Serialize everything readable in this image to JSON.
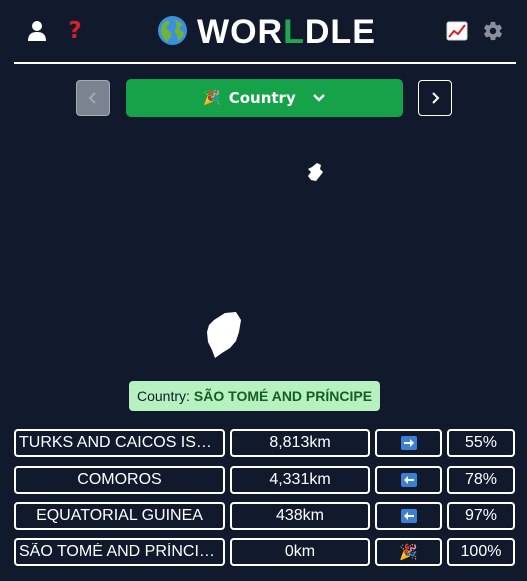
{
  "header": {
    "title_prefix": "WOR",
    "title_highlight": "L",
    "title_suffix": "DLE",
    "icons": [
      "user-icon",
      "help-icon",
      "globe-icon",
      "stats-icon",
      "gear-icon"
    ]
  },
  "mode_selector": {
    "emoji": "🎉",
    "label": "Country"
  },
  "answer": {
    "label": "Country:",
    "value": "SÃO TOMÉ AND PRÍNCIPE"
  },
  "guesses": [
    {
      "country": "TURKS AND CAICOS ISLANDS",
      "distance": "8,813km",
      "direction": "right",
      "proximity": "55%"
    },
    {
      "country": "COMOROS",
      "distance": "4,331km",
      "direction": "left",
      "proximity": "78%"
    },
    {
      "country": "EQUATORIAL GUINEA",
      "distance": "438km",
      "direction": "left",
      "proximity": "97%"
    },
    {
      "country": "SÃO TOMÉ AND PRÍNCIPE",
      "distance": "0km",
      "direction": "win",
      "proximity": "100%"
    }
  ],
  "colors": {
    "background": "#111a2d",
    "accent_green": "#16a249",
    "answer_bg": "#b7f1c0",
    "arrow_blue": "#3e7fd6"
  }
}
